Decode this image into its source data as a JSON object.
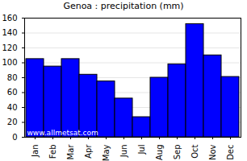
{
  "chart_data": {
    "type": "bar",
    "title": "Genoa : precipitation (mm)",
    "categories": [
      "Jan",
      "Feb",
      "Mar",
      "Apr",
      "May",
      "Jun",
      "Jul",
      "Aug",
      "Sep",
      "Oct",
      "Nov",
      "Dec"
    ],
    "values": [
      105,
      95,
      105,
      84,
      75,
      52,
      27,
      80,
      98,
      152,
      110,
      81
    ],
    "color": "#0000ff",
    "ylim": [
      0,
      160
    ],
    "yticks": [
      0,
      20,
      40,
      60,
      80,
      100,
      120,
      140,
      160
    ],
    "grid": true,
    "annotation": "www.allmetsat.com"
  }
}
